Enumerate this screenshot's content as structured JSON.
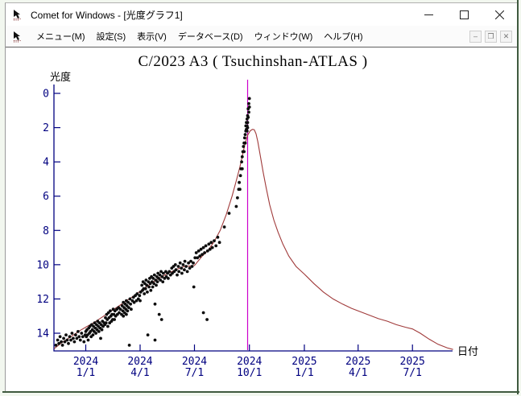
{
  "window": {
    "title": "Comet for Windows - [光度グラフ1]",
    "controls": [
      {
        "name": "minimize-button",
        "glyph": "minimize"
      },
      {
        "name": "maximize-button",
        "glyph": "maximize"
      },
      {
        "name": "close-button",
        "glyph": "close"
      }
    ]
  },
  "menu": {
    "items": [
      {
        "label": "メニュー(M)"
      },
      {
        "label": "設定(S)"
      },
      {
        "label": "表示(V)"
      },
      {
        "label": "データベース(D)"
      },
      {
        "label": "ウィンドウ(W)"
      },
      {
        "label": "ヘルプ(H)"
      }
    ],
    "mdi_controls": [
      {
        "name": "mdi-minimize-button",
        "glyph": "–"
      },
      {
        "name": "mdi-restore-button",
        "glyph": "❐"
      },
      {
        "name": "mdi-close-button",
        "glyph": "✕"
      }
    ]
  },
  "chart_data": {
    "type": "scatter",
    "title": "C/2023 A3 ( Tsuchinshan-ATLAS )",
    "ylabel": "光度",
    "xlabel": "日付",
    "y_axis_inverted": true,
    "y_ticks": [
      0,
      2,
      4,
      6,
      8,
      10,
      12,
      14
    ],
    "ylim": [
      -0.5,
      15.0
    ],
    "x_ticks": [
      {
        "d": 0,
        "year": "2024",
        "date": "1/1"
      },
      {
        "d": 91,
        "year": "2024",
        "date": "4/1"
      },
      {
        "d": 182,
        "year": "2024",
        "date": "7/1"
      },
      {
        "d": 274,
        "year": "2024",
        "date": "10/1"
      },
      {
        "d": 366,
        "year": "2025",
        "date": "1/1"
      },
      {
        "d": 456,
        "year": "2025",
        "date": "4/1"
      },
      {
        "d": 547,
        "year": "2025",
        "date": "7/1"
      }
    ],
    "x_range_days": [
      -53,
      615
    ],
    "perihelion_marker_day": 271,
    "colors": {
      "axis": "#000080",
      "tick_label": "#000080",
      "curve": "#a03a3a",
      "points": "#0d0d0d",
      "marker_line": "#cc00cc",
      "title": "#000000",
      "axis_name": "#000000"
    },
    "model_curve": [
      [
        -53,
        14.9
      ],
      [
        -40,
        14.55
      ],
      [
        -25,
        14.2
      ],
      [
        -10,
        13.85
      ],
      [
        0,
        13.65
      ],
      [
        15,
        13.35
      ],
      [
        30,
        13.0
      ],
      [
        45,
        12.65
      ],
      [
        60,
        12.3
      ],
      [
        75,
        11.95
      ],
      [
        91,
        11.55
      ],
      [
        105,
        11.2
      ],
      [
        120,
        10.85
      ],
      [
        135,
        10.55
      ],
      [
        150,
        10.3
      ],
      [
        165,
        10.1
      ],
      [
        182,
        10.05
      ],
      [
        195,
        9.5
      ],
      [
        205,
        9.15
      ],
      [
        215,
        8.65
      ],
      [
        225,
        8.0
      ],
      [
        235,
        7.1
      ],
      [
        245,
        6.0
      ],
      [
        252,
        5.1
      ],
      [
        258,
        4.3
      ],
      [
        263,
        3.5
      ],
      [
        267,
        2.9
      ],
      [
        271,
        2.45
      ],
      [
        275,
        2.2
      ],
      [
        279,
        2.1
      ],
      [
        282,
        2.12
      ],
      [
        285,
        2.35
      ],
      [
        288,
        2.8
      ],
      [
        292,
        3.6
      ],
      [
        297,
        4.6
      ],
      [
        302,
        5.5
      ],
      [
        308,
        6.5
      ],
      [
        315,
        7.4
      ],
      [
        322,
        8.1
      ],
      [
        330,
        8.8
      ],
      [
        340,
        9.5
      ],
      [
        352,
        10.1
      ],
      [
        366,
        10.55
      ],
      [
        382,
        11.1
      ],
      [
        398,
        11.6
      ],
      [
        414,
        12.0
      ],
      [
        430,
        12.3
      ],
      [
        445,
        12.55
      ],
      [
        460,
        12.75
      ],
      [
        475,
        12.95
      ],
      [
        490,
        13.15
      ],
      [
        505,
        13.3
      ],
      [
        520,
        13.5
      ],
      [
        535,
        13.65
      ],
      [
        547,
        13.75
      ],
      [
        560,
        14.0
      ],
      [
        575,
        14.35
      ],
      [
        590,
        14.65
      ],
      [
        605,
        14.85
      ],
      [
        615,
        14.95
      ]
    ],
    "points": [
      [
        -50,
        14.7
      ],
      [
        -47,
        14.4
      ],
      [
        -45,
        14.6
      ],
      [
        -43,
        14.2
      ],
      [
        -41,
        14.5
      ],
      [
        -39,
        14.7
      ],
      [
        -37,
        14.3
      ],
      [
        -35,
        14.5
      ],
      [
        -33,
        14.1
      ],
      [
        -31,
        14.4
      ],
      [
        -29,
        14.6
      ],
      [
        -27,
        14.2
      ],
      [
        -25,
        14.4
      ],
      [
        -23,
        14.0
      ],
      [
        -21,
        14.3
      ],
      [
        -19,
        14.5
      ],
      [
        -17,
        14.1
      ],
      [
        -15,
        14.3
      ],
      [
        -13,
        13.9
      ],
      [
        -11,
        14.2
      ],
      [
        -9,
        14.4
      ],
      [
        -7,
        14.0
      ],
      [
        -5,
        14.2
      ],
      [
        -3,
        14.5
      ],
      [
        -1,
        14.1
      ],
      [
        0,
        13.9
      ],
      [
        1,
        14.2
      ],
      [
        2,
        13.8
      ],
      [
        3,
        14.1
      ],
      [
        4,
        14.4
      ],
      [
        5,
        13.7
      ],
      [
        6,
        14.0
      ],
      [
        7,
        13.6
      ],
      [
        8,
        13.9
      ],
      [
        9,
        14.2
      ],
      [
        10,
        13.5
      ],
      [
        11,
        13.8
      ],
      [
        12,
        14.1
      ],
      [
        13,
        13.6
      ],
      [
        14,
        13.9
      ],
      [
        15,
        13.4
      ],
      [
        16,
        13.7
      ],
      [
        17,
        14.0
      ],
      [
        18,
        13.5
      ],
      [
        19,
        13.8
      ],
      [
        20,
        13.3
      ],
      [
        21,
        13.6
      ],
      [
        22,
        13.9
      ],
      [
        23,
        13.4
      ],
      [
        24,
        13.7
      ],
      [
        25,
        14.3
      ],
      [
        26,
        13.5
      ],
      [
        27,
        13.8
      ],
      [
        28,
        13.3
      ],
      [
        29,
        13.6
      ],
      [
        31,
        13.4
      ],
      [
        32,
        13.5
      ],
      [
        33,
        13.1
      ],
      [
        34,
        13.4
      ],
      [
        35,
        12.9
      ],
      [
        36,
        13.2
      ],
      [
        37,
        13.6
      ],
      [
        38,
        12.8
      ],
      [
        39,
        13.1
      ],
      [
        40,
        13.4
      ],
      [
        41,
        12.7
      ],
      [
        42,
        13.0
      ],
      [
        43,
        13.3
      ],
      [
        44,
        12.9
      ],
      [
        45,
        13.2
      ],
      [
        46,
        12.6
      ],
      [
        47,
        12.9
      ],
      [
        48,
        13.2
      ],
      [
        49,
        12.7
      ],
      [
        50,
        13.0
      ],
      [
        52,
        12.6
      ],
      [
        53,
        12.9
      ],
      [
        55,
        12.5
      ],
      [
        56,
        12.8
      ],
      [
        58,
        12.6
      ],
      [
        60,
        12.9
      ],
      [
        61,
        12.4
      ],
      [
        62,
        12.7
      ],
      [
        63,
        12.2
      ],
      [
        63,
        13.0
      ],
      [
        64,
        12.5
      ],
      [
        65,
        12.8
      ],
      [
        66,
        12.3
      ],
      [
        67,
        12.6
      ],
      [
        68,
        12.1
      ],
      [
        68,
        12.9
      ],
      [
        69,
        12.4
      ],
      [
        70,
        12.7
      ],
      [
        71,
        12.2
      ],
      [
        72,
        12.5
      ],
      [
        73,
        14.7
      ],
      [
        74,
        12.0
      ],
      [
        75,
        12.3
      ],
      [
        76,
        12.6
      ],
      [
        78,
        12.1
      ],
      [
        80,
        11.9
      ],
      [
        81,
        12.2
      ],
      [
        83,
        11.8
      ],
      [
        85,
        12.1
      ],
      [
        86,
        11.7
      ],
      [
        88,
        12.0
      ],
      [
        90,
        11.8
      ],
      [
        91,
        12.1
      ],
      [
        92,
        11.6
      ],
      [
        94,
        11.2
      ],
      [
        95,
        11.5
      ],
      [
        96,
        11.0
      ],
      [
        97,
        11.4
      ],
      [
        98,
        11.7
      ],
      [
        99,
        11.1
      ],
      [
        100,
        11.4
      ],
      [
        101,
        10.9
      ],
      [
        102,
        11.2
      ],
      [
        103,
        11.6
      ],
      [
        104,
        14.1
      ],
      [
        105,
        11.0
      ],
      [
        106,
        11.3
      ],
      [
        107,
        10.8
      ],
      [
        108,
        11.1
      ],
      [
        109,
        11.5
      ],
      [
        110,
        10.7
      ],
      [
        111,
        11.0
      ],
      [
        112,
        11.3
      ],
      [
        113,
        10.8
      ],
      [
        114,
        11.1
      ],
      [
        115,
        10.6
      ],
      [
        116,
        14.4
      ],
      [
        116,
        12.3
      ],
      [
        117,
        10.9
      ],
      [
        118,
        11.2
      ],
      [
        119,
        10.7
      ],
      [
        120,
        11.0
      ],
      [
        121,
        10.5
      ],
      [
        122,
        10.8
      ],
      [
        123,
        12.9
      ],
      [
        124,
        10.6
      ],
      [
        125,
        10.9
      ],
      [
        126,
        10.4
      ],
      [
        127,
        13.2
      ],
      [
        128,
        10.7
      ],
      [
        129,
        11.0
      ],
      [
        130,
        10.5
      ],
      [
        132,
        10.8
      ],
      [
        134,
        10.4
      ],
      [
        135,
        10.7
      ],
      [
        137,
        10.5
      ],
      [
        138,
        10.8
      ],
      [
        140,
        10.4
      ],
      [
        142,
        10.6
      ],
      [
        144,
        10.2
      ],
      [
        145,
        10.5
      ],
      [
        147,
        10.1
      ],
      [
        148,
        10.4
      ],
      [
        150,
        10.0
      ],
      [
        151,
        10.3
      ],
      [
        153,
        10.6
      ],
      [
        155,
        10.1
      ],
      [
        156,
        10.4
      ],
      [
        158,
        9.9
      ],
      [
        160,
        10.2
      ],
      [
        161,
        10.5
      ],
      [
        163,
        10.0
      ],
      [
        165,
        10.3
      ],
      [
        166,
        9.8
      ],
      [
        168,
        10.1
      ],
      [
        170,
        10.4
      ],
      [
        172,
        9.9
      ],
      [
        174,
        10.2
      ],
      [
        176,
        9.8
      ],
      [
        178,
        10.1
      ],
      [
        180,
        9.9
      ],
      [
        181,
        11.3
      ],
      [
        183,
        9.6
      ],
      [
        185,
        9.3
      ],
      [
        187,
        9.6
      ],
      [
        189,
        9.2
      ],
      [
        191,
        9.5
      ],
      [
        193,
        9.1
      ],
      [
        195,
        9.4
      ],
      [
        197,
        12.8
      ],
      [
        197,
        9.0
      ],
      [
        199,
        9.3
      ],
      [
        201,
        8.9
      ],
      [
        203,
        13.2
      ],
      [
        204,
        9.2
      ],
      [
        206,
        8.8
      ],
      [
        208,
        9.1
      ],
      [
        210,
        8.7
      ],
      [
        212,
        9.0
      ],
      [
        215,
        8.6
      ],
      [
        218,
        8.9
      ],
      [
        221,
        8.4
      ],
      [
        224,
        8.7
      ],
      [
        232,
        7.8
      ],
      [
        240,
        7.0
      ],
      [
        252,
        6.6
      ],
      [
        254,
        6.1
      ],
      [
        256,
        5.6
      ],
      [
        257,
        5.2
      ],
      [
        258,
        5.6
      ],
      [
        259,
        4.8
      ],
      [
        260,
        4.4
      ],
      [
        261,
        4.0
      ],
      [
        262,
        4.4
      ],
      [
        262,
        3.7
      ],
      [
        263,
        3.4
      ],
      [
        264,
        3.1
      ],
      [
        265,
        3.4
      ],
      [
        265,
        2.9
      ],
      [
        266,
        2.6
      ],
      [
        267,
        2.4
      ],
      [
        267,
        2.9
      ],
      [
        268,
        2.2
      ],
      [
        268,
        1.9
      ],
      [
        269,
        2.1
      ],
      [
        269,
        1.7
      ],
      [
        270,
        1.9
      ],
      [
        270,
        1.5
      ],
      [
        270,
        2.2
      ],
      [
        271,
        1.3
      ],
      [
        271,
        1.7
      ],
      [
        271,
        2.0
      ],
      [
        272,
        0.9
      ],
      [
        272,
        1.4
      ],
      [
        273,
        0.6
      ],
      [
        273,
        1.1
      ],
      [
        274,
        0.3
      ],
      [
        274,
        0.8
      ]
    ]
  }
}
